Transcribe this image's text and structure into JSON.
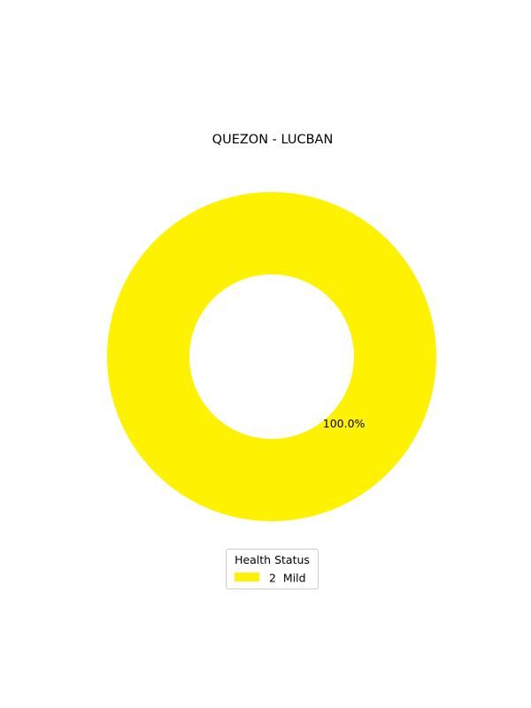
{
  "chart_data": {
    "type": "pie",
    "title": "QUEZON - LUCBAN",
    "donut": true,
    "slices": [
      {
        "label": "2  Mild",
        "value": 100.0,
        "percent_label": "100.0%",
        "color": "#fff200"
      }
    ],
    "legend": {
      "title": "Health Status",
      "placement": "bottom-center"
    }
  }
}
